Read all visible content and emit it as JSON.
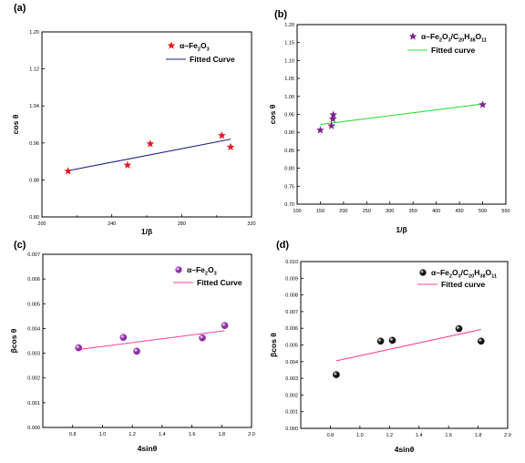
{
  "chart_data": [
    {
      "type": "scatter",
      "panel_label": "(a)",
      "xlabel": "1/β",
      "ylabel": "cos θ",
      "xlim": [
        200,
        320
      ],
      "ylim": [
        0.8,
        1.2
      ],
      "xticks": [
        200,
        240,
        280,
        320
      ],
      "xtick_labels": [
        "200",
        "240",
        "280",
        "320"
      ],
      "xminor": [
        220,
        260,
        300
      ],
      "yticks": [
        0.8,
        0.88,
        0.96,
        1.04,
        1.12,
        1.2
      ],
      "ytick_labels": [
        "0.80",
        "0.88",
        "0.96",
        "1.04",
        "1.12",
        "1.20"
      ],
      "marker": "star",
      "marker_color": "#e8141c",
      "line_color": "#1c1c8a",
      "legend": [
        "α–Fe2O3",
        "Fitted Curve"
      ],
      "legend_position": "top-right",
      "points": [
        {
          "x": 215,
          "y": 0.899
        },
        {
          "x": 249,
          "y": 0.912
        },
        {
          "x": 262,
          "y": 0.958
        },
        {
          "x": 303,
          "y": 0.976
        },
        {
          "x": 308,
          "y": 0.951
        }
      ],
      "fit": [
        {
          "x": 215,
          "y": 0.9
        },
        {
          "x": 308,
          "y": 0.968
        }
      ]
    },
    {
      "type": "scatter",
      "panel_label": "(b)",
      "xlabel": "1/β",
      "ylabel": "cos θ",
      "xlim": [
        100,
        550
      ],
      "ylim": [
        0.7,
        1.2
      ],
      "xticks": [
        100,
        150,
        200,
        250,
        300,
        350,
        400,
        450,
        500,
        550
      ],
      "xtick_labels": [
        "100",
        "150",
        "200",
        "250",
        "300",
        "350",
        "400",
        "450",
        "500",
        "550"
      ],
      "xminor": [],
      "yticks": [
        0.7,
        0.75,
        0.8,
        0.85,
        0.9,
        0.95,
        1.0,
        1.05,
        1.1,
        1.15,
        1.2
      ],
      "ytick_labels": [
        "0.70",
        "0.75",
        "0.80",
        "0.85",
        "0.90",
        "0.95",
        "1.00",
        "1.05",
        "1.10",
        "1.15",
        "1.20"
      ],
      "marker": "star",
      "marker_color": "#7a1f8c",
      "line_color": "#33e033",
      "legend": [
        "α–Fe2O3/C20H38O11",
        "Fitted curve"
      ],
      "legend_position": "top-right",
      "points": [
        {
          "x": 150,
          "y": 0.906
        },
        {
          "x": 174,
          "y": 0.918
        },
        {
          "x": 177,
          "y": 0.937
        },
        {
          "x": 178,
          "y": 0.949
        },
        {
          "x": 500,
          "y": 0.977
        }
      ],
      "fit": [
        {
          "x": 150,
          "y": 0.922
        },
        {
          "x": 500,
          "y": 0.979
        }
      ]
    },
    {
      "type": "scatter",
      "panel_label": "(c)",
      "xlabel": "4sinθ",
      "ylabel": "βcos θ",
      "xlim": [
        0.6,
        2.0
      ],
      "ylim": [
        0,
        0.007
      ],
      "xticks": [
        0.8,
        1.0,
        1.2,
        1.4,
        1.6,
        1.8,
        2.0
      ],
      "xtick_labels": [
        "0.8",
        "1.0",
        "1.2",
        "1.4",
        "1.6",
        "1.8",
        "2.0"
      ],
      "xminor": [],
      "yticks": [
        0,
        0.001,
        0.002,
        0.003,
        0.004,
        0.005,
        0.006,
        0.007
      ],
      "ytick_labels": [
        "0.000",
        "0.001",
        "0.002",
        "0.003",
        "0.004",
        "0.005",
        "0.006",
        "0.007"
      ],
      "marker": "sphere",
      "marker_color": "#8e2fa8",
      "line_color": "#ff3fa0",
      "legend": [
        "α–Fe2O3",
        "Fitted Curve"
      ],
      "legend_position": "top-right",
      "points": [
        {
          "x": 0.84,
          "y": 0.00322
        },
        {
          "x": 1.14,
          "y": 0.00364
        },
        {
          "x": 1.23,
          "y": 0.00308
        },
        {
          "x": 1.67,
          "y": 0.00362
        },
        {
          "x": 1.82,
          "y": 0.00412
        }
      ],
      "fit": [
        {
          "x": 0.84,
          "y": 0.00315
        },
        {
          "x": 1.82,
          "y": 0.00391
        }
      ]
    },
    {
      "type": "scatter",
      "panel_label": "(d)",
      "xlabel": "4sinθ",
      "ylabel": "βcos θ",
      "xlim": [
        0.6,
        2.0
      ],
      "ylim": [
        0,
        0.01
      ],
      "xticks": [
        0.8,
        1.0,
        1.2,
        1.4,
        1.6,
        1.8,
        2.0
      ],
      "xtick_labels": [
        "0.8",
        "1.0",
        "1.2",
        "1.4",
        "1.6",
        "1.8",
        "2.0"
      ],
      "xminor": [],
      "yticks": [
        0,
        0.001,
        0.002,
        0.003,
        0.004,
        0.005,
        0.006,
        0.007,
        0.008,
        0.009,
        0.01
      ],
      "ytick_labels": [
        "0.000",
        "0.001",
        "0.002",
        "0.003",
        "0.004",
        "0.005",
        "0.006",
        "0.007",
        "0.008",
        "0.009",
        "0.010"
      ],
      "marker": "sphere",
      "marker_color": "#111111",
      "line_color": "#ff3fa0",
      "legend": [
        "α–Fe2O3/C20H38O11",
        "Fitted curve"
      ],
      "legend_position": "top-right",
      "points": [
        {
          "x": 0.84,
          "y": 0.00322
        },
        {
          "x": 1.14,
          "y": 0.00523
        },
        {
          "x": 1.22,
          "y": 0.00528
        },
        {
          "x": 1.67,
          "y": 0.00598
        },
        {
          "x": 1.82,
          "y": 0.00523
        }
      ],
      "fit": [
        {
          "x": 0.84,
          "y": 0.00405
        },
        {
          "x": 1.82,
          "y": 0.00593
        }
      ]
    }
  ]
}
